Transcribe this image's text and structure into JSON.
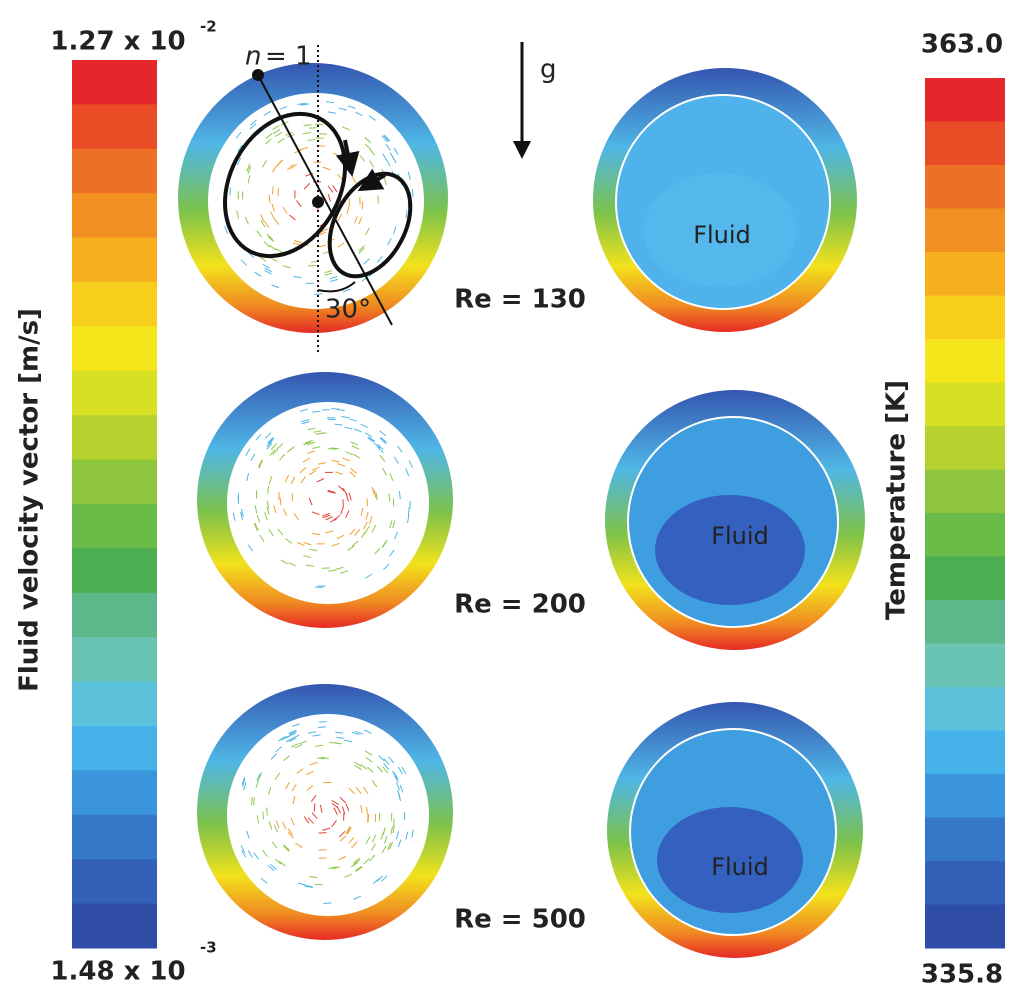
{
  "velocity_bar": {
    "max": "1.27 x 10",
    "max_exp": "-2",
    "min": "1.48 x 10",
    "min_exp": "-3",
    "label": "Fluid velocity vector [m/s]"
  },
  "temperature_bar": {
    "max": "363.0",
    "min": "335.8",
    "label": "Temperature [K]"
  },
  "annotations": {
    "n_symbol": "n",
    "n_value": "= 1",
    "gravity": "g",
    "angle": "30°"
  },
  "cases": [
    {
      "label": "Re = 130",
      "region": "Fluid"
    },
    {
      "label": "Re = 200",
      "region": "Fluid"
    },
    {
      "label": "Re = 500",
      "region": "Fluid"
    }
  ]
}
